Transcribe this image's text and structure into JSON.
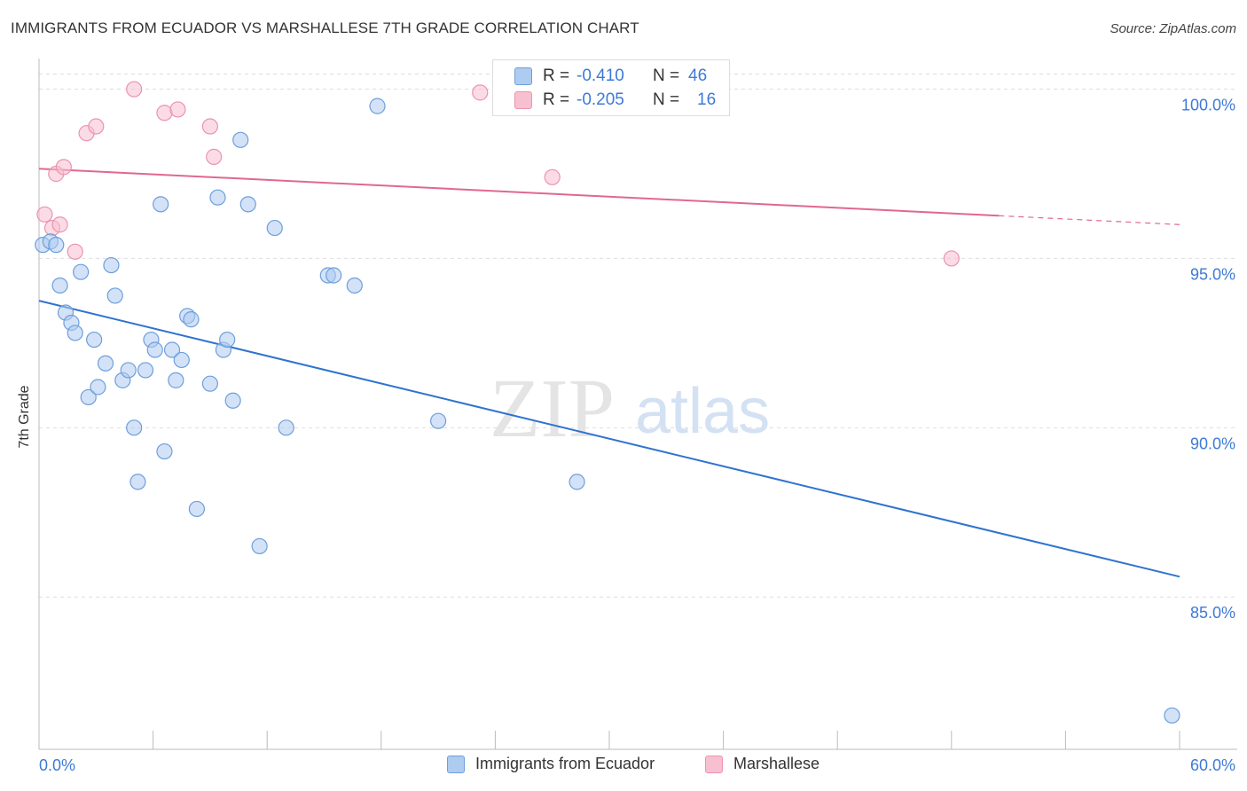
{
  "header": {
    "title": "IMMIGRANTS FROM ECUADOR VS MARSHALLESE 7TH GRADE CORRELATION CHART",
    "source": "Source: ZipAtlas.com"
  },
  "watermark": {
    "zip": "ZIP",
    "atlas": "atlas"
  },
  "legend_top": [
    {
      "r_label": "R =",
      "r_value": "-0.410",
      "n_label": "N =",
      "n_value": "46"
    },
    {
      "r_label": "R =",
      "r_value": "-0.205",
      "n_label": "N =",
      "n_value": "16"
    }
  ],
  "chart_data": {
    "type": "scatter",
    "title": "IMMIGRANTS FROM ECUADOR VS MARSHALLESE 7TH GRADE CORRELATION CHART",
    "xlabel": "",
    "ylabel": "7th Grade",
    "xlim": [
      0,
      60
    ],
    "ylim": [
      80.5,
      100.8
    ],
    "x_tick_labels": [
      "0.0%",
      "60.0%"
    ],
    "y_ticks": [
      85,
      90,
      95,
      100
    ],
    "y_tick_labels": [
      "85.0%",
      "90.0%",
      "95.0%",
      "100.0%"
    ],
    "grid": true,
    "legend_position": "bottom",
    "colors": {
      "ecuador_fill": "#aecbf0",
      "ecuador_stroke": "#6d9fdc",
      "ecuador_line": "#2e73d0",
      "marshallese_fill": "#f7c0d1",
      "marshallese_stroke": "#ec93ae",
      "marshallese_line": "#e0688f",
      "axis_text": "#3d7ad6"
    },
    "series": [
      {
        "name": "Immigrants from Ecuador",
        "r": -0.41,
        "n": 46,
        "trend": {
          "x": [
            0,
            60
          ],
          "y": [
            93.75,
            85.6
          ],
          "dashed_from": null
        },
        "points": [
          [
            0.2,
            95.4
          ],
          [
            0.6,
            95.5
          ],
          [
            0.9,
            95.4
          ],
          [
            1.1,
            94.2
          ],
          [
            1.4,
            93.4
          ],
          [
            1.7,
            93.1
          ],
          [
            1.9,
            92.8
          ],
          [
            2.2,
            94.6
          ],
          [
            2.6,
            90.9
          ],
          [
            2.9,
            92.6
          ],
          [
            3.1,
            91.2
          ],
          [
            3.5,
            91.9
          ],
          [
            3.8,
            94.8
          ],
          [
            4.0,
            93.9
          ],
          [
            4.4,
            91.4
          ],
          [
            4.7,
            91.7
          ],
          [
            5.0,
            90.0
          ],
          [
            5.2,
            88.4
          ],
          [
            5.6,
            91.7
          ],
          [
            5.9,
            92.6
          ],
          [
            6.1,
            92.3
          ],
          [
            6.4,
            96.6
          ],
          [
            6.6,
            89.3
          ],
          [
            7.0,
            92.3
          ],
          [
            7.2,
            91.4
          ],
          [
            7.5,
            92.0
          ],
          [
            7.8,
            93.3
          ],
          [
            8.0,
            93.2
          ],
          [
            8.3,
            87.6
          ],
          [
            9.0,
            91.3
          ],
          [
            9.4,
            96.8
          ],
          [
            9.7,
            92.3
          ],
          [
            9.9,
            92.6
          ],
          [
            10.2,
            90.8
          ],
          [
            10.6,
            98.5
          ],
          [
            11.0,
            96.6
          ],
          [
            11.6,
            86.5
          ],
          [
            12.4,
            95.9
          ],
          [
            13.0,
            90.0
          ],
          [
            15.2,
            94.5
          ],
          [
            15.5,
            94.5
          ],
          [
            16.6,
            94.2
          ],
          [
            17.8,
            99.5
          ],
          [
            21.0,
            90.2
          ],
          [
            28.3,
            88.4
          ],
          [
            59.6,
            81.5
          ]
        ]
      },
      {
        "name": "Marshallese",
        "r": -0.205,
        "n": 16,
        "trend": {
          "x": [
            0,
            60
          ],
          "y": [
            97.65,
            96.0
          ],
          "dashed_from": 50.5
        },
        "points": [
          [
            0.3,
            96.3
          ],
          [
            0.7,
            95.9
          ],
          [
            0.9,
            97.5
          ],
          [
            1.1,
            96.0
          ],
          [
            1.3,
            97.7
          ],
          [
            1.9,
            95.2
          ],
          [
            2.5,
            98.7
          ],
          [
            3.0,
            98.9
          ],
          [
            5.0,
            100.0
          ],
          [
            6.6,
            99.3
          ],
          [
            7.3,
            99.4
          ],
          [
            9.0,
            98.9
          ],
          [
            9.2,
            98.0
          ],
          [
            23.2,
            99.9
          ],
          [
            27.0,
            97.4
          ],
          [
            48.0,
            95.0
          ]
        ]
      }
    ]
  }
}
